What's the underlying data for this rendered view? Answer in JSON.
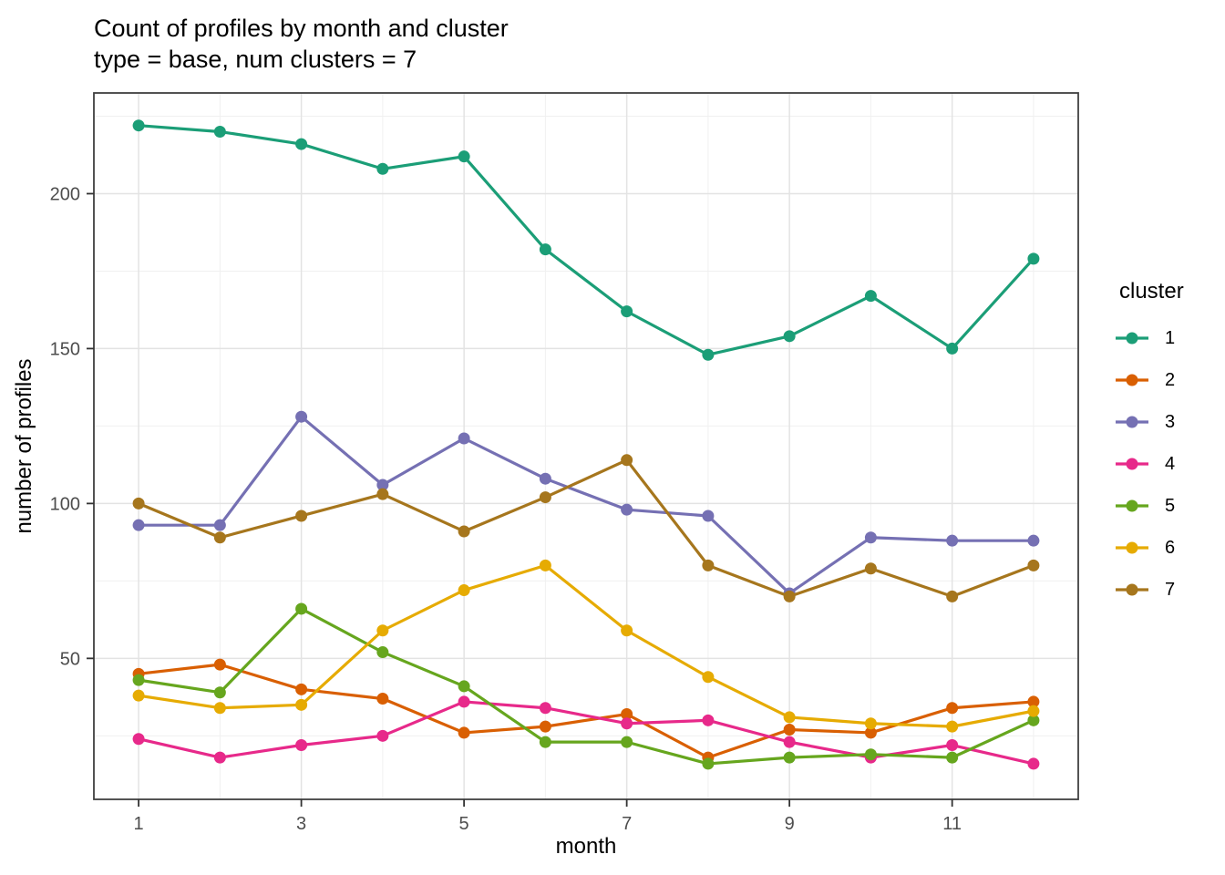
{
  "title": {
    "line1": "Count of profiles by month and cluster",
    "line2": "type = base, num clusters = 7"
  },
  "legend": {
    "title": "cluster",
    "items": [
      {
        "label": "1",
        "color": "#1B9E77"
      },
      {
        "label": "2",
        "color": "#D95F02"
      },
      {
        "label": "3",
        "color": "#7570B3"
      },
      {
        "label": "4",
        "color": "#E7298A"
      },
      {
        "label": "5",
        "color": "#66A61E"
      },
      {
        "label": "6",
        "color": "#E6AB02"
      },
      {
        "label": "7",
        "color": "#A6761D"
      }
    ]
  },
  "chart_data": {
    "type": "line",
    "title": "Count of profiles by month and cluster",
    "subtitle": "type = base, num clusters = 7",
    "xlabel": "month",
    "ylabel": "number of profiles",
    "x": [
      1,
      2,
      3,
      4,
      5,
      6,
      7,
      8,
      9,
      10,
      11,
      12
    ],
    "x_major_ticks": [
      1,
      3,
      5,
      7,
      9,
      11
    ],
    "x_minor_ticks": [
      2,
      4,
      6,
      8,
      10,
      12
    ],
    "y_major_ticks": [
      50,
      100,
      150,
      200
    ],
    "y_minor_ticks": [
      25,
      75,
      125,
      175,
      225
    ],
    "xlim": [
      0.45,
      12.55
    ],
    "ylim": [
      4.5,
      232.5
    ],
    "grid": "on",
    "legend_position": "right",
    "legend_title": "cluster",
    "series": [
      {
        "name": "1",
        "color": "#1B9E77",
        "values": [
          222,
          220,
          216,
          208,
          212,
          182,
          162,
          148,
          154,
          167,
          150,
          179
        ]
      },
      {
        "name": "2",
        "color": "#D95F02",
        "values": [
          45,
          48,
          40,
          37,
          26,
          28,
          32,
          18,
          27,
          26,
          34,
          36
        ]
      },
      {
        "name": "3",
        "color": "#7570B3",
        "values": [
          93,
          93,
          128,
          106,
          121,
          108,
          98,
          96,
          71,
          89,
          88,
          88
        ]
      },
      {
        "name": "4",
        "color": "#E7298A",
        "values": [
          24,
          18,
          22,
          25,
          36,
          34,
          29,
          30,
          23,
          18,
          22,
          16
        ]
      },
      {
        "name": "5",
        "color": "#66A61E",
        "values": [
          43,
          39,
          66,
          52,
          41,
          23,
          23,
          16,
          18,
          19,
          18,
          30
        ]
      },
      {
        "name": "6",
        "color": "#E6AB02",
        "values": [
          38,
          34,
          35,
          59,
          72,
          80,
          59,
          44,
          31,
          29,
          28,
          33
        ]
      },
      {
        "name": "7",
        "color": "#A6761D",
        "values": [
          100,
          89,
          96,
          103,
          91,
          102,
          114,
          80,
          70,
          79,
          70,
          80
        ]
      }
    ],
    "style": {
      "panel_border": "#404040",
      "major_grid": "#e3e3e3",
      "minor_grid": "#f0f0f0",
      "tick_color": "#333333",
      "tick_label_color": "#4d4d4d"
    }
  }
}
